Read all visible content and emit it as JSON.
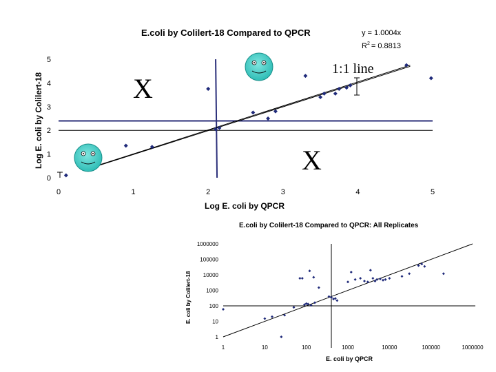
{
  "colors": {
    "line": "#000000",
    "marker": "#1f2a7a",
    "threshold": "#2b2f7a",
    "face": "#37c9c2"
  },
  "chart_data": [
    {
      "type": "scatter",
      "title": "E.coli by Colilert-18 Compared to QPCR",
      "xlabel": "Log E. coli by QPCR",
      "ylabel": "Log E. coli by Colilert-18",
      "xlim": [
        0,
        5
      ],
      "ylim": [
        0,
        5
      ],
      "xticks": [
        "0",
        "1",
        "2",
        "3",
        "4",
        "5"
      ],
      "yticks": [
        "0",
        "1",
        "2",
        "3",
        "4",
        "5"
      ],
      "equation": "y = 1.0004x",
      "r2_label": "R",
      "r2_sup": "2",
      "r2_value": "= 0.8813",
      "annotation_line": "1:1 line",
      "annotation_x1": "X",
      "annotation_x2": "X",
      "thresholds": {
        "x": 2.1,
        "y_upper": 2.4,
        "y_lower": 2.0
      },
      "points": [
        [
          0.9,
          1.35
        ],
        [
          1.25,
          1.3
        ],
        [
          2.0,
          3.75
        ],
        [
          2.1,
          2.05
        ],
        [
          2.15,
          2.1
        ],
        [
          2.6,
          2.75
        ],
        [
          2.8,
          2.5
        ],
        [
          3.3,
          4.3
        ],
        [
          3.5,
          3.4
        ],
        [
          3.55,
          3.55
        ],
        [
          3.7,
          3.55
        ],
        [
          3.75,
          3.75
        ],
        [
          3.85,
          3.8
        ],
        [
          3.9,
          3.9
        ],
        [
          4.65,
          4.75
        ],
        [
          4.98,
          4.2
        ],
        [
          0.1,
          0.1
        ],
        [
          2.9,
          2.8
        ]
      ]
    },
    {
      "type": "scatter",
      "title": "E.coli by Colilert-18 Compared to QPCR: All Replicates",
      "xlabel": "E. coli by QPCR",
      "ylabel": "E. coli by Colilert-18",
      "xscale": "log",
      "yscale": "log",
      "xlim": [
        1,
        1000000
      ],
      "ylim": [
        1,
        1000000
      ],
      "xticks": [
        "1",
        "10",
        "100",
        "1000",
        "10000",
        "100000",
        "1000000"
      ],
      "yticks": [
        "1",
        "10",
        "100",
        "1000",
        "10000",
        "100000",
        "1000000"
      ],
      "thresholds": {
        "x": 400,
        "y": 100
      },
      "points": [
        [
          1,
          60
        ],
        [
          10,
          15
        ],
        [
          15,
          20
        ],
        [
          25,
          1
        ],
        [
          30,
          25
        ],
        [
          50,
          80
        ],
        [
          70,
          6000
        ],
        [
          80,
          6000
        ],
        [
          90,
          120
        ],
        [
          100,
          140
        ],
        [
          110,
          130
        ],
        [
          120,
          18000
        ],
        [
          130,
          110
        ],
        [
          150,
          7000
        ],
        [
          160,
          160
        ],
        [
          200,
          1500
        ],
        [
          350,
          400
        ],
        [
          400,
          350
        ],
        [
          450,
          280
        ],
        [
          500,
          300
        ],
        [
          550,
          220
        ],
        [
          1000,
          3500
        ],
        [
          1200,
          15000
        ],
        [
          1500,
          5000
        ],
        [
          2000,
          6000
        ],
        [
          2500,
          4000
        ],
        [
          3000,
          3500
        ],
        [
          3500,
          20000
        ],
        [
          4000,
          6000
        ],
        [
          4500,
          4000
        ],
        [
          5000,
          5000
        ],
        [
          6000,
          5500
        ],
        [
          7000,
          4500
        ],
        [
          8000,
          5000
        ],
        [
          10000,
          6000
        ],
        [
          20000,
          8000
        ],
        [
          30000,
          12000
        ],
        [
          50000,
          40000
        ],
        [
          60000,
          50000
        ],
        [
          70000,
          35000
        ],
        [
          200000,
          12000
        ]
      ]
    }
  ]
}
